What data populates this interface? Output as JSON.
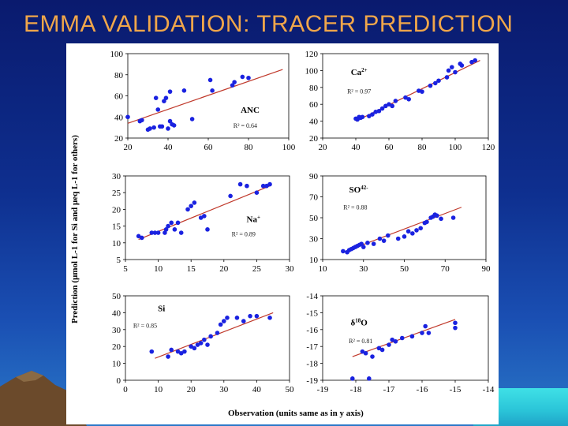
{
  "slide": {
    "title": "EMMA VALIDATION: TRACER PREDICTION"
  },
  "figure": {
    "ylabel": "Prediction (μmol L-1 for Si and μeq L-1 for others)",
    "xlabel": "Observation (units same as in y axis)"
  },
  "colors": {
    "point": "#1a22e0",
    "fit": "#c0392b",
    "title": "#f0a64a"
  },
  "chart_data": [
    {
      "type": "scatter",
      "name": "ANC",
      "label": "ANC",
      "r2_text": "R² = 0.64",
      "xlim": [
        20,
        100
      ],
      "ylim": [
        20,
        100
      ],
      "xticks": [
        "20",
        "40",
        "60",
        "80",
        "100"
      ],
      "yticks": [
        "20",
        "40",
        "60",
        "80",
        "100"
      ],
      "fit": [
        [
          20,
          34
        ],
        [
          97,
          85
        ]
      ],
      "points": [
        [
          20,
          40
        ],
        [
          26,
          36
        ],
        [
          27,
          37
        ],
        [
          30,
          28
        ],
        [
          31,
          29
        ],
        [
          33,
          30
        ],
        [
          34,
          58
        ],
        [
          35,
          47
        ],
        [
          36,
          31
        ],
        [
          37,
          31
        ],
        [
          38,
          55
        ],
        [
          39,
          58
        ],
        [
          40,
          29
        ],
        [
          41,
          64
        ],
        [
          41,
          36
        ],
        [
          42,
          33
        ],
        [
          43,
          32
        ],
        [
          48,
          65
        ],
        [
          52,
          38
        ],
        [
          61,
          75
        ],
        [
          62,
          65
        ],
        [
          72,
          70
        ],
        [
          73,
          73
        ],
        [
          77,
          78
        ],
        [
          80,
          77
        ]
      ]
    },
    {
      "type": "scatter",
      "name": "Ca",
      "label": "Ca2+",
      "r2_text": "R² = 0.97",
      "xlim": [
        20,
        120
      ],
      "ylim": [
        20,
        120
      ],
      "xticks": [
        "20",
        "40",
        "60",
        "80",
        "100",
        "120"
      ],
      "yticks": [
        "20",
        "40",
        "60",
        "80",
        "100",
        "120"
      ],
      "fit": [
        [
          40,
          40
        ],
        [
          115,
          112
        ]
      ],
      "points": [
        [
          40,
          43
        ],
        [
          41,
          42
        ],
        [
          42,
          45
        ],
        [
          43,
          44
        ],
        [
          44,
          45
        ],
        [
          48,
          46
        ],
        [
          50,
          48
        ],
        [
          52,
          51
        ],
        [
          54,
          52
        ],
        [
          56,
          55
        ],
        [
          58,
          58
        ],
        [
          60,
          60
        ],
        [
          62,
          58
        ],
        [
          64,
          64
        ],
        [
          70,
          68
        ],
        [
          72,
          66
        ],
        [
          78,
          76
        ],
        [
          80,
          75
        ],
        [
          85,
          82
        ],
        [
          88,
          85
        ],
        [
          90,
          88
        ],
        [
          95,
          92
        ],
        [
          96,
          100
        ],
        [
          98,
          104
        ],
        [
          100,
          98
        ],
        [
          103,
          108
        ],
        [
          104,
          106
        ],
        [
          110,
          110
        ],
        [
          112,
          112
        ]
      ]
    },
    {
      "type": "scatter",
      "name": "Na",
      "label": "Na+",
      "r2_text": "R² = 0.89",
      "xlim": [
        5,
        30
      ],
      "ylim": [
        5,
        30
      ],
      "xticks": [
        "5",
        "10",
        "15",
        "20",
        "25",
        "30"
      ],
      "yticks": [
        "5",
        "10",
        "15",
        "20",
        "25",
        "30"
      ],
      "fit": [
        [
          7,
          11
        ],
        [
          27,
          27
        ]
      ],
      "points": [
        [
          7,
          12
        ],
        [
          7.5,
          11.5
        ],
        [
          9,
          13
        ],
        [
          9.5,
          13
        ],
        [
          10,
          13
        ],
        [
          11,
          13
        ],
        [
          11.2,
          14
        ],
        [
          11.5,
          15
        ],
        [
          12,
          16
        ],
        [
          12.5,
          14
        ],
        [
          13,
          16
        ],
        [
          13.5,
          13
        ],
        [
          14.5,
          20
        ],
        [
          15,
          21
        ],
        [
          15.5,
          22
        ],
        [
          16.5,
          17.5
        ],
        [
          17,
          18
        ],
        [
          17.5,
          14
        ],
        [
          21,
          24
        ],
        [
          22.5,
          27.5
        ],
        [
          23.5,
          27
        ],
        [
          25,
          25
        ],
        [
          26,
          27
        ],
        [
          26.5,
          27
        ],
        [
          27,
          27.5
        ]
      ]
    },
    {
      "type": "scatter",
      "name": "SO4",
      "label": "SO42-",
      "r2_text": "R² = 0.88",
      "xlim": [
        10,
        90
      ],
      "ylim": [
        10,
        90
      ],
      "xticks": [
        "10",
        "30",
        "50",
        "70",
        "90"
      ],
      "yticks": [
        "10",
        "30",
        "50",
        "70",
        "90"
      ],
      "fit": [
        [
          20,
          17
        ],
        [
          78,
          60
        ]
      ],
      "points": [
        [
          20,
          18
        ],
        [
          22,
          17
        ],
        [
          23,
          19
        ],
        [
          24,
          20
        ],
        [
          25,
          21
        ],
        [
          26,
          22
        ],
        [
          27,
          23
        ],
        [
          28,
          24
        ],
        [
          29,
          25
        ],
        [
          30,
          22
        ],
        [
          32,
          26
        ],
        [
          35,
          25
        ],
        [
          38,
          30
        ],
        [
          40,
          28
        ],
        [
          42,
          33
        ],
        [
          47,
          30
        ],
        [
          50,
          32
        ],
        [
          52,
          37
        ],
        [
          54,
          35
        ],
        [
          56,
          38
        ],
        [
          58,
          40
        ],
        [
          60,
          45
        ],
        [
          61,
          46
        ],
        [
          63,
          50
        ],
        [
          64,
          51
        ],
        [
          65,
          53
        ],
        [
          66,
          52
        ],
        [
          68,
          49
        ],
        [
          74,
          50
        ]
      ]
    },
    {
      "type": "scatter",
      "name": "Si",
      "label": "Si",
      "r2_text": "R² = 0.85",
      "xlim": [
        0,
        50
      ],
      "ylim": [
        0,
        50
      ],
      "xticks": [
        "0",
        "10",
        "20",
        "30",
        "40",
        "50"
      ],
      "yticks": [
        "0",
        "10",
        "20",
        "30",
        "40",
        "50"
      ],
      "fit": [
        [
          9,
          13
        ],
        [
          45,
          40
        ]
      ],
      "points": [
        [
          8,
          17
        ],
        [
          13,
          14
        ],
        [
          14,
          18
        ],
        [
          16,
          17
        ],
        [
          17,
          16
        ],
        [
          18,
          17
        ],
        [
          20,
          20
        ],
        [
          21,
          19
        ],
        [
          22,
          21
        ],
        [
          23,
          22
        ],
        [
          24,
          24
        ],
        [
          25,
          21
        ],
        [
          26,
          26
        ],
        [
          28,
          28
        ],
        [
          29,
          33
        ],
        [
          30,
          35
        ],
        [
          31,
          37
        ],
        [
          34,
          37
        ],
        [
          36,
          35
        ],
        [
          38,
          38
        ],
        [
          40,
          38
        ],
        [
          44,
          37
        ]
      ]
    },
    {
      "type": "scatter",
      "name": "d18O",
      "label": "δ18O",
      "r2_text": "R² = 0.81",
      "xlim": [
        -19,
        -14
      ],
      "ylim": [
        -19,
        -14
      ],
      "xticks": [
        "-19",
        "-18",
        "-17",
        "-16",
        "-15",
        "-14"
      ],
      "yticks": [
        "-19",
        "-18",
        "-17",
        "-16",
        "-15",
        "-14"
      ],
      "fit": [
        [
          -18.1,
          -17.6
        ],
        [
          -15,
          -15.4
        ]
      ],
      "points": [
        [
          -18.1,
          -18.9
        ],
        [
          -17.8,
          -17.3
        ],
        [
          -17.7,
          -17.4
        ],
        [
          -17.6,
          -18.9
        ],
        [
          -17.5,
          -17.6
        ],
        [
          -17.3,
          -17.1
        ],
        [
          -17.2,
          -17.2
        ],
        [
          -17.0,
          -16.9
        ],
        [
          -16.9,
          -16.6
        ],
        [
          -16.8,
          -16.7
        ],
        [
          -16.6,
          -16.5
        ],
        [
          -16.3,
          -16.4
        ],
        [
          -16.0,
          -16.2
        ],
        [
          -15.9,
          -15.8
        ],
        [
          -15.8,
          -16.2
        ],
        [
          -15.0,
          -15.6
        ],
        [
          -15.0,
          -15.9
        ]
      ]
    }
  ]
}
